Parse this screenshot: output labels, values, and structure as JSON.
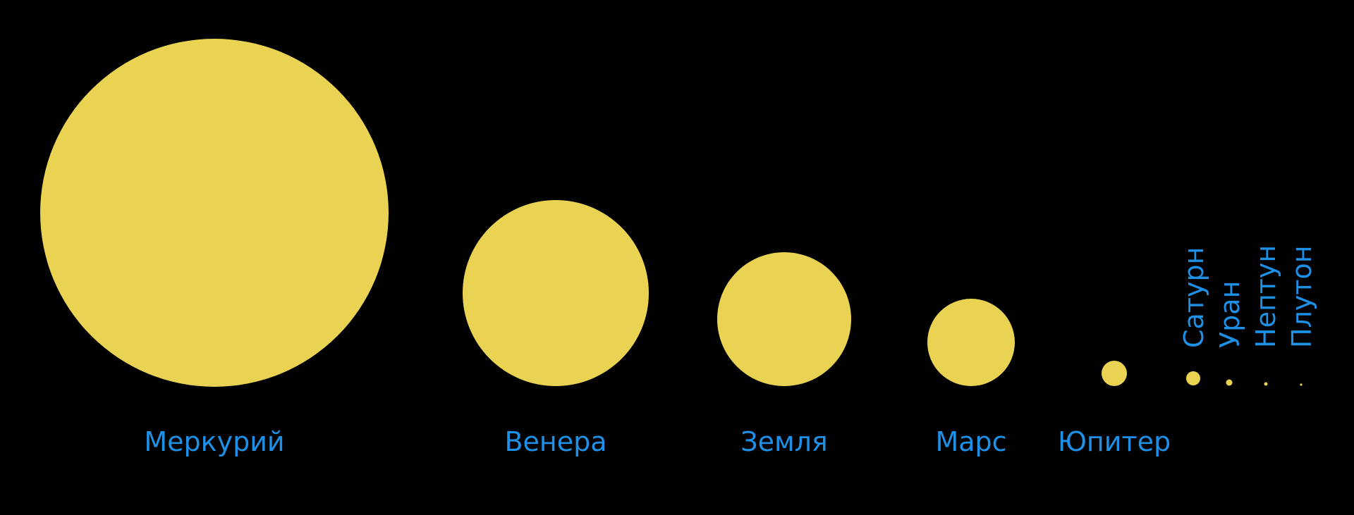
{
  "colors": {
    "background": "#000000",
    "disc": "#EAD353",
    "label": "#1E90E6"
  },
  "planets": [
    {
      "name": "Меркурий",
      "label_orientation": "horizontal"
    },
    {
      "name": "Венера",
      "label_orientation": "horizontal"
    },
    {
      "name": "Земля",
      "label_orientation": "horizontal"
    },
    {
      "name": "Марс",
      "label_orientation": "horizontal"
    },
    {
      "name": "Юпитер",
      "label_orientation": "horizontal"
    },
    {
      "name": "Сатурн",
      "label_orientation": "vertical"
    },
    {
      "name": "Уран",
      "label_orientation": "vertical"
    },
    {
      "name": "Нептун",
      "label_orientation": "vertical"
    },
    {
      "name": "Плутон",
      "label_orientation": "vertical"
    }
  ]
}
